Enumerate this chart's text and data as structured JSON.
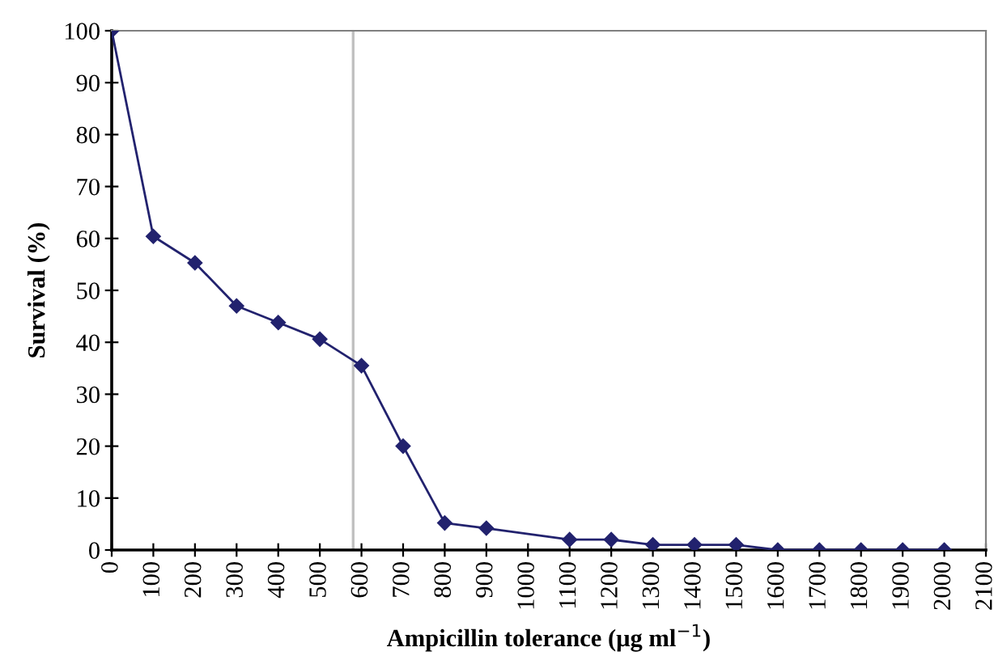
{
  "chart_data": {
    "type": "line",
    "xlabel": "Ampicillin tolerance (μg ml$^{−1}$)",
    "ylabel": "Survival (%)",
    "x": [
      0,
      100,
      200,
      300,
      400,
      500,
      600,
      700,
      800,
      900,
      1100,
      1200,
      1300,
      1400,
      1500,
      1600,
      1700,
      1800,
      1900,
      2000
    ],
    "series": [
      {
        "color": "#22226e",
        "values": [
          100,
          60.4,
          55.3,
          47,
          43.8,
          40.6,
          35.5,
          20,
          5.2,
          4.2,
          2,
          2,
          1,
          1,
          1,
          0,
          0,
          0,
          0,
          0
        ]
      }
    ],
    "xlim": [
      0,
      2100
    ],
    "xticks": [
      0,
      100,
      200,
      300,
      400,
      500,
      600,
      700,
      800,
      900,
      1000,
      1100,
      1200,
      1300,
      1400,
      1500,
      1600,
      1700,
      1800,
      1900,
      2000,
      2100
    ],
    "ylim": [
      0,
      100
    ],
    "yticks": [
      0,
      10,
      20,
      30,
      40,
      50,
      60,
      70,
      80,
      90,
      100
    ],
    "ref_lines": [
      {
        "axis": "x",
        "value": 580,
        "color": "#c0c0c0"
      }
    ],
    "marker": "diamond",
    "line_style": "solid",
    "grid": false,
    "legend": false
  }
}
